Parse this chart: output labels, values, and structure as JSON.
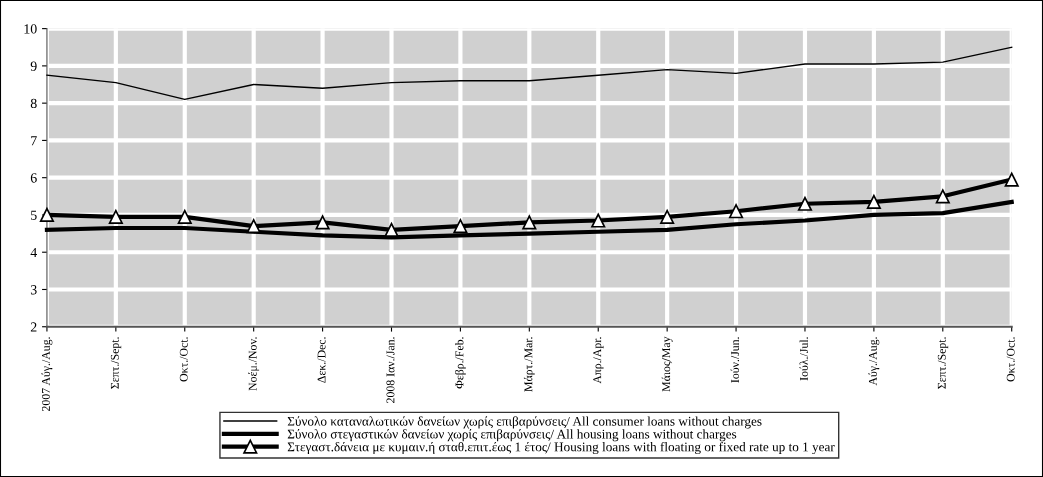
{
  "chart_data": {
    "type": "line",
    "categories": [
      "2007 Αύγ./Aug.",
      "Σεπτ./Sept.",
      "Οκτ./Oct.",
      "Νοέμ./Nov.",
      "Δεκ./Dec.",
      "2008 Ιαν./Jan.",
      "Φεβρ./Feb.",
      "Μάρτ./Mar.",
      "Απρ./Apr.",
      "Μάιος/May",
      "Ιούν./Jun.",
      "Ιούλ./Jul.",
      "Αύγ./Aug.",
      "Σεπτ./Sept.",
      "Οκτ./Oct."
    ],
    "series": [
      {
        "name": "Σύνολο καταναλωτικών δανείων χωρίς επιβαρύνσεις/ All consumer loans without charges",
        "color": "#000000",
        "values": [
          8.75,
          8.55,
          8.1,
          8.5,
          8.4,
          8.55,
          8.6,
          8.6,
          8.75,
          8.9,
          8.8,
          9.05,
          9.05,
          9.1,
          9.5
        ],
        "marker": "none"
      },
      {
        "name": "Σύνολο στεγαστικών δανείων χωρίς επιβαρύνσεις/ All housing loans without charges",
        "color": "#000000",
        "values": [
          4.6,
          4.65,
          4.65,
          4.55,
          4.45,
          4.4,
          4.45,
          4.5,
          4.55,
          4.6,
          4.75,
          4.85,
          5.0,
          5.05,
          5.35
        ],
        "marker": "none"
      },
      {
        "name": "Στεγαστ.δάνεια με κυμαιν.ή σταθ.επιτ.έως 1 έτος/ Housing loans with floating or fixed rate up to 1 year",
        "color": "#000000",
        "values": [
          5.0,
          4.95,
          4.95,
          4.7,
          4.8,
          4.6,
          4.7,
          4.8,
          4.85,
          4.95,
          5.1,
          5.3,
          5.35,
          5.5,
          5.95
        ],
        "marker": "triangle"
      }
    ],
    "ylim": [
      2,
      10
    ],
    "yticks": [
      2,
      3,
      4,
      5,
      6,
      7,
      8,
      9,
      10
    ],
    "grid": true,
    "legend": "bottom",
    "line_style": "solid"
  }
}
